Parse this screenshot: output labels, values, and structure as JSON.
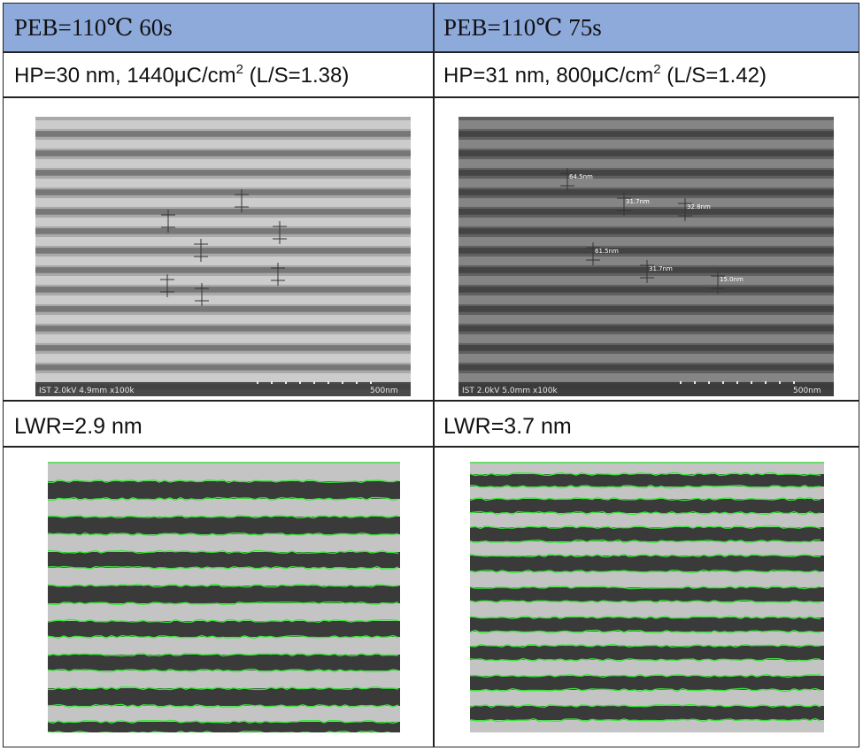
{
  "columns": [
    {
      "header": "PEB=110℃ 60s",
      "conditions": {
        "hp": "HP=30 nm, 1440μC/cm",
        "sup": "2",
        "ratio": " (L/S=1.38)"
      },
      "sem": {
        "info": "IST 2.0kV 4.9mm x100k",
        "scale": "500nm",
        "measurements": [
          "",
          "",
          "",
          "",
          "",
          "",
          ""
        ]
      },
      "lwr": "LWR=2.9 nm"
    },
    {
      "header": "PEB=110℃ 75s",
      "conditions": {
        "hp": "HP=31 nm, 800μC/cm",
        "sup": "2",
        "ratio": " (L/S=1.42)"
      },
      "sem": {
        "info": "IST 2.0kV 5.0mm x100k",
        "scale": "500nm",
        "measurements": [
          "64.5nm",
          "31.7nm",
          "32.8nm",
          "61.5nm",
          "31.7nm",
          "15.0nm"
        ]
      },
      "lwr": "LWR=3.7 nm"
    }
  ],
  "colors": {
    "header_fill": "#8eaadb",
    "edge_line": "#39e639",
    "sem1_bg": "#a9a9a9",
    "sem2_bg": "#606060"
  }
}
